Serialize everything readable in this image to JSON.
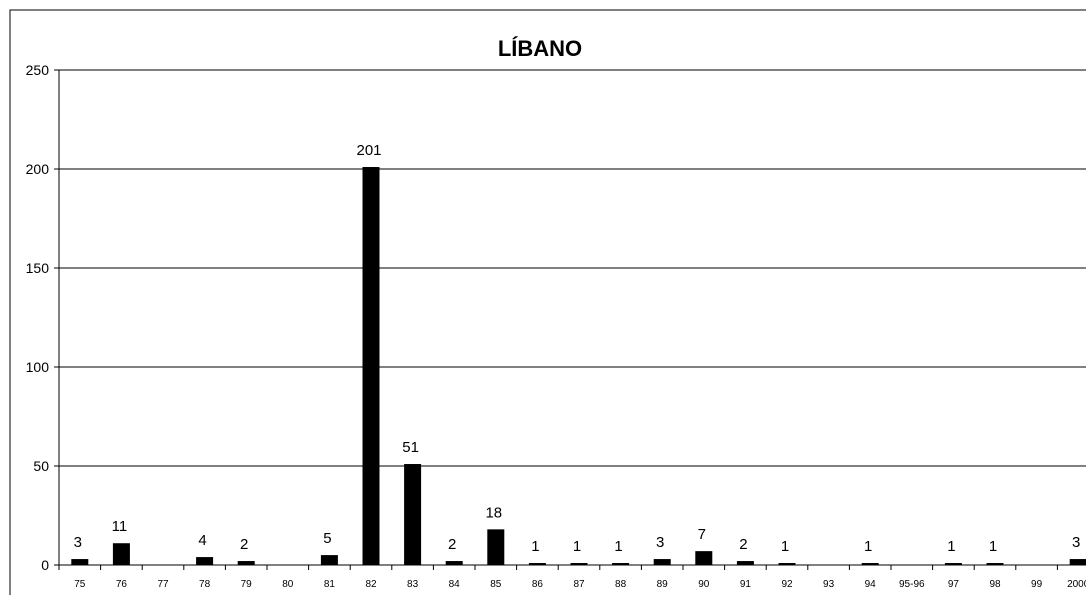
{
  "chart_data": {
    "type": "bar",
    "title": "LÍBANO",
    "xlabel": "",
    "ylabel": "",
    "ylim": [
      0,
      250
    ],
    "yticks": [
      0,
      50,
      100,
      150,
      200,
      250
    ],
    "grid": true,
    "legend": "none",
    "bar_color": "#000000",
    "categories": [
      "75",
      "76",
      "77",
      "78",
      "79",
      "80",
      "81",
      "82",
      "83",
      "84",
      "85",
      "86",
      "87",
      "88",
      "89",
      "90",
      "91",
      "92",
      "93",
      "94",
      "95-96",
      "97",
      "98",
      "99",
      "2000"
    ],
    "values": [
      3,
      11,
      0,
      4,
      2,
      0,
      5,
      201,
      51,
      2,
      18,
      1,
      1,
      1,
      3,
      7,
      2,
      1,
      0,
      1,
      0,
      1,
      1,
      0,
      3
    ]
  }
}
